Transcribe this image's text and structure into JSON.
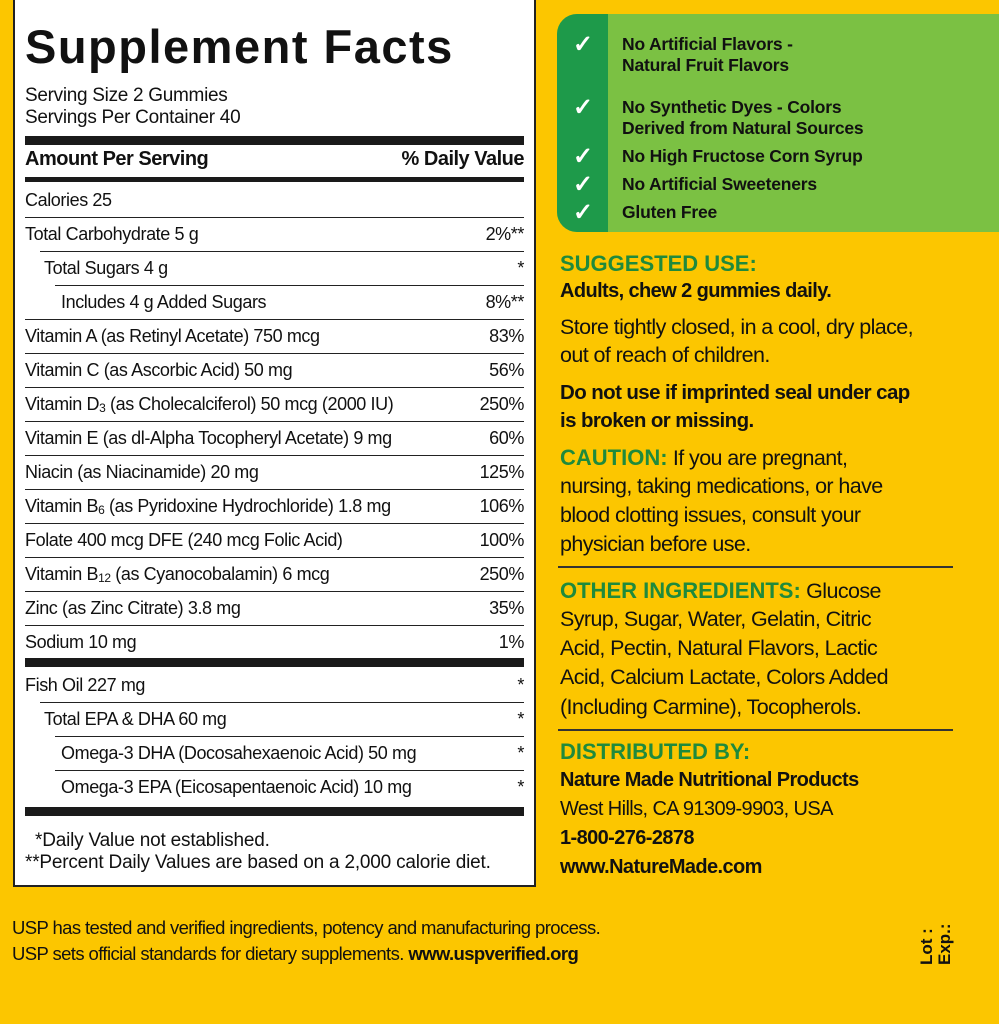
{
  "facts": {
    "title": "Supplement Facts",
    "serving_size": "Serving Size 2 Gummies",
    "servings_per_container": "Servings Per Container 40",
    "col_amount": "Amount Per Serving",
    "col_dv": "% Daily Value",
    "rows": [
      {
        "label": "Calories  25",
        "dv": "",
        "indent": 0
      },
      {
        "label": "Total Carbohydrate  5 g",
        "dv": "2%**",
        "indent": 0
      },
      {
        "label": "Total Sugars  4 g",
        "dv": "*",
        "indent": 1
      },
      {
        "label": "Includes  4 g Added Sugars",
        "dv": "8%**",
        "indent": 2
      },
      {
        "label": "Vitamin A (as Retinyl Acetate)  750 mcg",
        "dv": "83%",
        "indent": 0
      },
      {
        "label": "Vitamin C (as Ascorbic Acid)  50 mg",
        "dv": "56%",
        "indent": 0
      },
      {
        "label": "Vitamin D",
        "sub": "3",
        "rest": " (as Cholecalciferol)  50 mcg (2000 IU)",
        "dv": "250%",
        "indent": 0
      },
      {
        "label": "Vitamin E (as dl-Alpha Tocopheryl Acetate)  9 mg",
        "dv": "60%",
        "indent": 0
      },
      {
        "label": "Niacin (as Niacinamide)  20 mg",
        "dv": "125%",
        "indent": 0
      },
      {
        "label": "Vitamin B",
        "sub": "6",
        "rest": " (as Pyridoxine Hydrochloride)  1.8 mg",
        "dv": "106%",
        "indent": 0
      },
      {
        "label": "Folate  400 mcg DFE (240 mcg Folic Acid)",
        "dv": "100%",
        "indent": 0
      },
      {
        "label": "Vitamin B",
        "sub": "12",
        "rest": " (as Cyanocobalamin)  6 mcg",
        "dv": "250%",
        "indent": 0
      },
      {
        "label": "Zinc (as Zinc Citrate)  3.8 mg",
        "dv": "35%",
        "indent": 0
      },
      {
        "label": "Sodium  10  mg",
        "dv": "1%",
        "indent": 0
      }
    ],
    "rows2": [
      {
        "label": "Fish Oil  227 mg",
        "dv": "*",
        "indent": 0
      },
      {
        "label": "Total EPA & DHA  60 mg",
        "dv": "*",
        "indent": 1
      },
      {
        "label": "Omega-3 DHA (Docosahexaenoic Acid)  50 mg",
        "dv": "*",
        "indent": 2
      },
      {
        "label": "Omega-3 EPA (Eicosapentaenoic Acid)  10 mg",
        "dv": "*",
        "indent": 2
      }
    ],
    "footnote1": "*Daily Value not established.",
    "footnote2": "**Percent Daily Values are based on a 2,000 calorie diet."
  },
  "features": {
    "icon": "checkmark-icon",
    "items": [
      [
        "No Artificial Flavors -",
        "Natural Fruit Flavors"
      ],
      [
        "No Synthetic Dyes - Colors",
        "Derived from Natural Sources"
      ],
      [
        "No High Fructose Corn Syrup"
      ],
      [
        "No Artificial Sweeteners"
      ],
      [
        "Gluten Free"
      ]
    ]
  },
  "suggested_use": {
    "heading": "SUGGESTED USE:",
    "dose": "Adults, chew 2 gummies daily.",
    "storage": [
      "Store tightly closed, in a cool, dry place,",
      "out of reach of children."
    ],
    "warning": [
      "Do not use if imprinted seal under cap",
      "is broken or missing."
    ]
  },
  "caution": {
    "heading": "CAUTION:",
    "lines": [
      " If you are pregnant,",
      "nursing, taking medications, or have",
      "blood clotting issues, consult your",
      "physician before use."
    ]
  },
  "other_ingredients": {
    "heading": "OTHER INGREDIENTS:",
    "lines": [
      " Glucose",
      "Syrup, Sugar, Water, Gelatin, Citric",
      "Acid, Pectin, Natural Flavors, Lactic",
      "Acid, Calcium Lactate, Colors Added",
      "(Including Carmine), Tocopherols."
    ]
  },
  "distributor": {
    "heading": "DISTRIBUTED BY:",
    "name": "Nature Made Nutritional Products",
    "address": "West Hills, CA 91309-9903, USA",
    "phone": "1-800-276-2878",
    "website": "www.NatureMade.com"
  },
  "usp": {
    "line1": "USP has tested and verified ingredients, potency and manufacturing process.",
    "line2": "USP sets official standards for dietary supplements. ",
    "url": "www.uspverified.org"
  },
  "lot": "Lot :",
  "exp": "Exp.:",
  "colors": {
    "background": "#fcc600",
    "green_box": "#7bc143",
    "green_stripe": "#1e9a4a",
    "heading_green": "#1f8a3c"
  }
}
